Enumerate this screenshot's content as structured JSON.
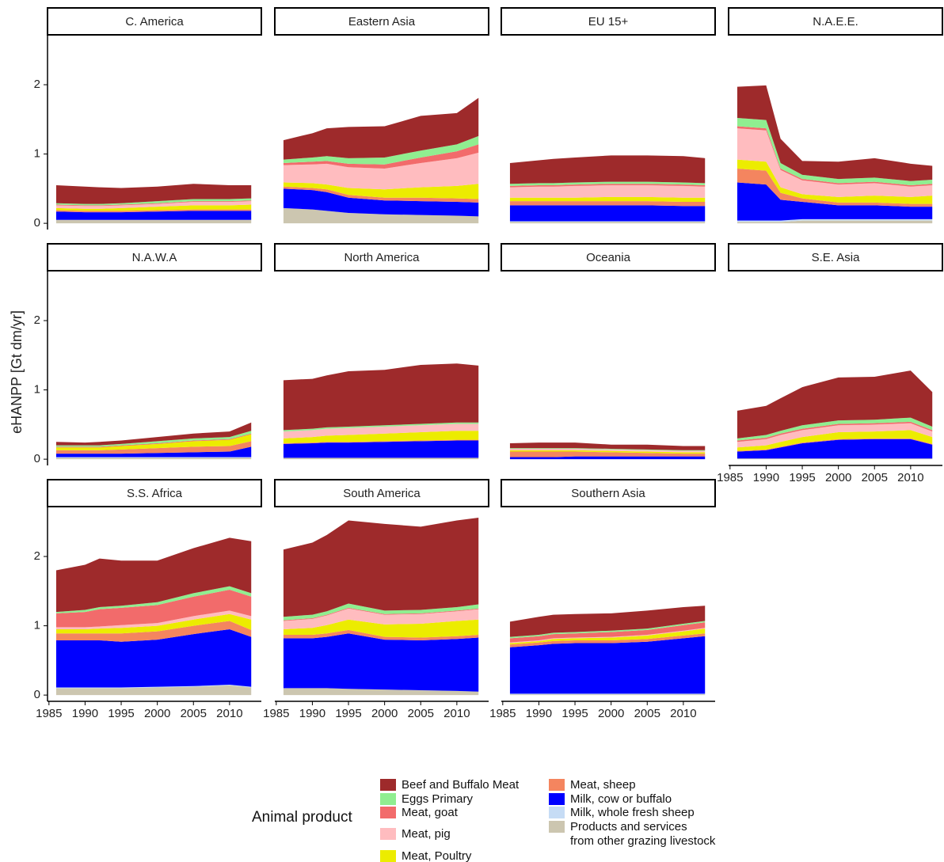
{
  "chart_data": {
    "type": "area",
    "stacked": true,
    "y_label": "eHANPP [Gt dm/yr]",
    "legend_title": "Animal product",
    "x": [
      1986,
      1990,
      1992,
      1995,
      2000,
      2005,
      2010,
      2013
    ],
    "xlim": [
      1984.8,
      2014.4
    ],
    "xticks": [
      1985,
      1990,
      1995,
      2000,
      2005,
      2010
    ],
    "ylim": [
      -0.09,
      2.72
    ],
    "yticks": [
      0,
      1,
      2
    ],
    "series": [
      {
        "name": "Beef and Buffalo Meat",
        "color": "#9e2a2b"
      },
      {
        "name": "Eggs Primary",
        "color": "#90ee90"
      },
      {
        "name": "Meat, goat",
        "color": "#f26b6b"
      },
      {
        "name": "Meat, pig",
        "color": "#ffbcbf"
      },
      {
        "name": "Meat, Poultry",
        "color": "#ecec00"
      },
      {
        "name": "Meat, sheep",
        "color": "#f4855f"
      },
      {
        "name": "Milk, cow or buffalo",
        "color": "#0000ff"
      },
      {
        "name": "Milk, whole fresh sheep",
        "color": "#c6dcf5"
      },
      {
        "name": "Products and services\nfrom other grazing livestock",
        "color": "#ccc6b0"
      }
    ],
    "panels": [
      {
        "title": "C. America",
        "values": [
          [
            0.26,
            0.25,
            0.24,
            0.22,
            0.21,
            0.22,
            0.2,
            0.19
          ],
          [
            0.02,
            0.02,
            0.02,
            0.02,
            0.03,
            0.03,
            0.03,
            0.03
          ],
          [
            0.01,
            0.01,
            0.01,
            0.01,
            0.01,
            0.01,
            0.01,
            0.01
          ],
          [
            0.04,
            0.04,
            0.04,
            0.04,
            0.04,
            0.05,
            0.05,
            0.05
          ],
          [
            0.03,
            0.03,
            0.03,
            0.04,
            0.05,
            0.06,
            0.06,
            0.07
          ],
          [
            0.02,
            0.02,
            0.02,
            0.02,
            0.02,
            0.02,
            0.02,
            0.02
          ],
          [
            0.12,
            0.11,
            0.11,
            0.11,
            0.12,
            0.13,
            0.13,
            0.13
          ],
          [
            0,
            0,
            0,
            0,
            0,
            0,
            0,
            0
          ],
          [
            0.05,
            0.05,
            0.05,
            0.05,
            0.05,
            0.05,
            0.05,
            0.05
          ]
        ]
      },
      {
        "title": "Eastern Asia",
        "values": [
          [
            0.28,
            0.35,
            0.4,
            0.45,
            0.45,
            0.5,
            0.45,
            0.55
          ],
          [
            0.05,
            0.06,
            0.07,
            0.08,
            0.1,
            0.1,
            0.1,
            0.12
          ],
          [
            0.03,
            0.04,
            0.04,
            0.05,
            0.06,
            0.08,
            0.1,
            0.12
          ],
          [
            0.25,
            0.27,
            0.3,
            0.3,
            0.3,
            0.35,
            0.4,
            0.45
          ],
          [
            0.06,
            0.07,
            0.07,
            0.1,
            0.12,
            0.15,
            0.18,
            0.22
          ],
          [
            0.03,
            0.03,
            0.04,
            0.04,
            0.04,
            0.05,
            0.05,
            0.05
          ],
          [
            0.28,
            0.28,
            0.27,
            0.22,
            0.2,
            0.2,
            0.2,
            0.2
          ],
          [
            0,
            0,
            0,
            0,
            0,
            0,
            0,
            0
          ],
          [
            0.22,
            0.2,
            0.18,
            0.15,
            0.13,
            0.12,
            0.11,
            0.1
          ]
        ]
      },
      {
        "title": "EU 15+",
        "values": [
          [
            0.3,
            0.33,
            0.35,
            0.36,
            0.38,
            0.38,
            0.38,
            0.36
          ],
          [
            0.03,
            0.03,
            0.03,
            0.03,
            0.03,
            0.03,
            0.03,
            0.03
          ],
          [
            0.02,
            0.02,
            0.02,
            0.02,
            0.02,
            0.02,
            0.02,
            0.02
          ],
          [
            0.15,
            0.16,
            0.16,
            0.17,
            0.17,
            0.17,
            0.17,
            0.16
          ],
          [
            0.05,
            0.05,
            0.05,
            0.05,
            0.06,
            0.06,
            0.06,
            0.06
          ],
          [
            0.06,
            0.06,
            0.06,
            0.06,
            0.06,
            0.06,
            0.06,
            0.06
          ],
          [
            0.23,
            0.23,
            0.23,
            0.23,
            0.23,
            0.23,
            0.22,
            0.22
          ],
          [
            0.01,
            0.01,
            0.01,
            0.01,
            0.01,
            0.01,
            0.01,
            0.01
          ],
          [
            0.02,
            0.02,
            0.02,
            0.02,
            0.02,
            0.02,
            0.02,
            0.02
          ]
        ]
      },
      {
        "title": "N.A.E.E.",
        "values": [
          [
            0.45,
            0.5,
            0.35,
            0.2,
            0.25,
            0.28,
            0.25,
            0.2
          ],
          [
            0.12,
            0.12,
            0.08,
            0.06,
            0.06,
            0.06,
            0.06,
            0.06
          ],
          [
            0.03,
            0.03,
            0.02,
            0.02,
            0.02,
            0.02,
            0.02,
            0.02
          ],
          [
            0.45,
            0.45,
            0.25,
            0.2,
            0.18,
            0.18,
            0.15,
            0.15
          ],
          [
            0.13,
            0.13,
            0.08,
            0.06,
            0.08,
            0.1,
            0.1,
            0.12
          ],
          [
            0.2,
            0.2,
            0.1,
            0.05,
            0.04,
            0.04,
            0.04,
            0.04
          ],
          [
            0.55,
            0.52,
            0.3,
            0.25,
            0.2,
            0.2,
            0.18,
            0.18
          ],
          [
            0.02,
            0.02,
            0.02,
            0.02,
            0.02,
            0.02,
            0.02,
            0.02
          ],
          [
            0.02,
            0.02,
            0.02,
            0.04,
            0.04,
            0.04,
            0.04,
            0.04
          ]
        ]
      },
      {
        "title": "N.A.W.A",
        "values": [
          [
            0.05,
            0.04,
            0.05,
            0.05,
            0.06,
            0.07,
            0.08,
            0.12
          ],
          [
            0.02,
            0.02,
            0.02,
            0.02,
            0.03,
            0.03,
            0.03,
            0.04
          ],
          [
            0.01,
            0.01,
            0.01,
            0.01,
            0.01,
            0.01,
            0.01,
            0.01
          ],
          [
            0,
            0,
            0,
            0,
            0,
            0,
            0,
            0
          ],
          [
            0.04,
            0.04,
            0.04,
            0.05,
            0.06,
            0.08,
            0.09,
            0.1
          ],
          [
            0.05,
            0.05,
            0.05,
            0.06,
            0.07,
            0.08,
            0.08,
            0.08
          ],
          [
            0.05,
            0.05,
            0.05,
            0.05,
            0.06,
            0.07,
            0.08,
            0.15
          ],
          [
            0.01,
            0.01,
            0.01,
            0.01,
            0.01,
            0.01,
            0.01,
            0.01
          ],
          [
            0.02,
            0.02,
            0.02,
            0.02,
            0.02,
            0.02,
            0.02,
            0.02
          ]
        ]
      },
      {
        "title": "North America",
        "values": [
          [
            0.72,
            0.72,
            0.75,
            0.8,
            0.8,
            0.85,
            0.85,
            0.82
          ],
          [
            0.02,
            0.02,
            0.02,
            0.02,
            0.02,
            0.02,
            0.02,
            0.02
          ],
          [
            0,
            0,
            0,
            0,
            0,
            0,
            0,
            0
          ],
          [
            0.1,
            0.1,
            0.1,
            0.1,
            0.1,
            0.1,
            0.1,
            0.1
          ],
          [
            0.07,
            0.08,
            0.09,
            0.1,
            0.11,
            0.12,
            0.13,
            0.13
          ],
          [
            0.01,
            0.01,
            0.01,
            0.01,
            0.01,
            0.01,
            0.01,
            0.01
          ],
          [
            0.2,
            0.21,
            0.22,
            0.22,
            0.23,
            0.24,
            0.25,
            0.25
          ],
          [
            0,
            0,
            0,
            0,
            0,
            0,
            0,
            0
          ],
          [
            0.02,
            0.02,
            0.02,
            0.02,
            0.02,
            0.02,
            0.02,
            0.02
          ]
        ]
      },
      {
        "title": "Oceania",
        "values": [
          [
            0.07,
            0.08,
            0.08,
            0.08,
            0.06,
            0.07,
            0.06,
            0.06
          ],
          [
            0.01,
            0.01,
            0.01,
            0.01,
            0.01,
            0.01,
            0.01,
            0.01
          ],
          [
            0,
            0,
            0,
            0,
            0,
            0,
            0,
            0
          ],
          [
            0.02,
            0.02,
            0.02,
            0.02,
            0.02,
            0.02,
            0.02,
            0.02
          ],
          [
            0.02,
            0.02,
            0.02,
            0.02,
            0.02,
            0.02,
            0.02,
            0.02
          ],
          [
            0.08,
            0.08,
            0.08,
            0.07,
            0.06,
            0.05,
            0.04,
            0.04
          ],
          [
            0.03,
            0.03,
            0.03,
            0.04,
            0.04,
            0.04,
            0.04,
            0.04
          ],
          [
            0,
            0,
            0,
            0,
            0,
            0,
            0,
            0
          ],
          [
            0,
            0,
            0,
            0,
            0,
            0,
            0,
            0
          ]
        ]
      },
      {
        "title": "S.E. Asia",
        "values": [
          [
            0.4,
            0.42,
            0.47,
            0.55,
            0.62,
            0.62,
            0.68,
            0.5
          ],
          [
            0.03,
            0.04,
            0.04,
            0.05,
            0.05,
            0.05,
            0.06,
            0.05
          ],
          [
            0.02,
            0.02,
            0.02,
            0.02,
            0.02,
            0.02,
            0.02,
            0.02
          ],
          [
            0.08,
            0.09,
            0.1,
            0.1,
            0.1,
            0.1,
            0.1,
            0.08
          ],
          [
            0.05,
            0.06,
            0.07,
            0.08,
            0.1,
            0.1,
            0.12,
            0.1
          ],
          [
            0.01,
            0.01,
            0.01,
            0.01,
            0.01,
            0.01,
            0.01,
            0.01
          ],
          [
            0.1,
            0.12,
            0.16,
            0.22,
            0.27,
            0.28,
            0.28,
            0.2
          ],
          [
            0,
            0,
            0,
            0,
            0,
            0,
            0,
            0
          ],
          [
            0.01,
            0.01,
            0.01,
            0.01,
            0.01,
            0.01,
            0.01,
            0.01
          ]
        ]
      },
      {
        "title": "S.S. Africa",
        "values": [
          [
            0.6,
            0.65,
            0.7,
            0.65,
            0.6,
            0.65,
            0.7,
            0.75
          ],
          [
            0.02,
            0.03,
            0.03,
            0.03,
            0.04,
            0.05,
            0.05,
            0.05
          ],
          [
            0.2,
            0.22,
            0.25,
            0.25,
            0.26,
            0.28,
            0.3,
            0.28
          ],
          [
            0.03,
            0.03,
            0.03,
            0.04,
            0.04,
            0.05,
            0.05,
            0.05
          ],
          [
            0.06,
            0.06,
            0.07,
            0.08,
            0.08,
            0.09,
            0.1,
            0.15
          ],
          [
            0.1,
            0.1,
            0.1,
            0.12,
            0.12,
            0.12,
            0.12,
            0.1
          ],
          [
            0.68,
            0.68,
            0.68,
            0.66,
            0.68,
            0.75,
            0.8,
            0.72
          ],
          [
            0.01,
            0.01,
            0.01,
            0.01,
            0.01,
            0.01,
            0.01,
            0.01
          ],
          [
            0.1,
            0.1,
            0.1,
            0.1,
            0.11,
            0.12,
            0.14,
            0.11
          ]
        ]
      },
      {
        "title": "South America",
        "values": [
          [
            0.97,
            1.04,
            1.1,
            1.2,
            1.25,
            1.2,
            1.25,
            1.25
          ],
          [
            0.05,
            0.05,
            0.05,
            0.06,
            0.05,
            0.05,
            0.05,
            0.06
          ],
          [
            0.01,
            0.01,
            0.01,
            0.01,
            0.01,
            0.01,
            0.01,
            0.01
          ],
          [
            0.12,
            0.13,
            0.14,
            0.16,
            0.14,
            0.14,
            0.14,
            0.15
          ],
          [
            0.08,
            0.1,
            0.12,
            0.15,
            0.18,
            0.2,
            0.22,
            0.22
          ],
          [
            0.05,
            0.05,
            0.05,
            0.05,
            0.04,
            0.04,
            0.04,
            0.04
          ],
          [
            0.72,
            0.72,
            0.74,
            0.8,
            0.72,
            0.72,
            0.75,
            0.78
          ],
          [
            0,
            0,
            0,
            0,
            0,
            0,
            0,
            0
          ],
          [
            0.1,
            0.1,
            0.1,
            0.09,
            0.08,
            0.07,
            0.06,
            0.05
          ]
        ]
      },
      {
        "title": "Southern Asia",
        "values": [
          [
            0.22,
            0.26,
            0.26,
            0.26,
            0.25,
            0.26,
            0.24,
            0.22
          ],
          [
            0.02,
            0.02,
            0.02,
            0.02,
            0.02,
            0.02,
            0.02,
            0.02
          ],
          [
            0.06,
            0.06,
            0.06,
            0.06,
            0.07,
            0.07,
            0.08,
            0.08
          ],
          [
            0.01,
            0.01,
            0.01,
            0.01,
            0.01,
            0.01,
            0.01,
            0.01
          ],
          [
            0.02,
            0.02,
            0.03,
            0.03,
            0.04,
            0.05,
            0.06,
            0.07
          ],
          [
            0.04,
            0.04,
            0.04,
            0.04,
            0.04,
            0.04,
            0.04,
            0.04
          ],
          [
            0.67,
            0.7,
            0.72,
            0.73,
            0.73,
            0.75,
            0.8,
            0.83
          ],
          [
            0.01,
            0.01,
            0.01,
            0.01,
            0.01,
            0.01,
            0.01,
            0.01
          ],
          [
            0.01,
            0.01,
            0.01,
            0.01,
            0.01,
            0.01,
            0.01,
            0.01
          ]
        ]
      }
    ]
  }
}
